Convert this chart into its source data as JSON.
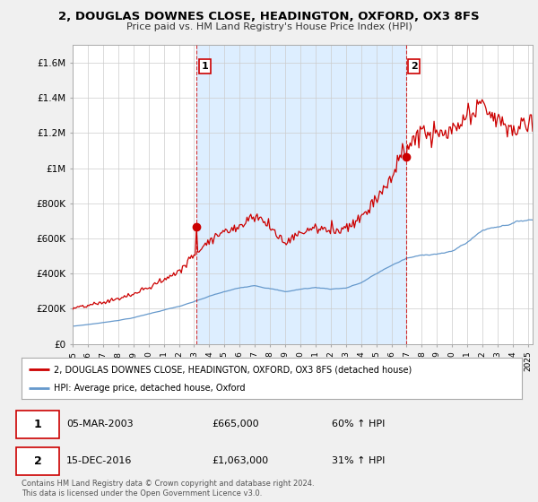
{
  "title": "2, DOUGLAS DOWNES CLOSE, HEADINGTON, OXFORD, OX3 8FS",
  "subtitle": "Price paid vs. HM Land Registry's House Price Index (HPI)",
  "ylim": [
    0,
    1700000
  ],
  "yticks": [
    0,
    200000,
    400000,
    600000,
    800000,
    1000000,
    1200000,
    1400000,
    1600000
  ],
  "ytick_labels": [
    "£0",
    "£200K",
    "£400K",
    "£600K",
    "£800K",
    "£1M",
    "£1.2M",
    "£1.4M",
    "£1.6M"
  ],
  "xlim_start": 1995.0,
  "xlim_end": 2025.3,
  "transaction1_year": 2003.17,
  "transaction1_price": 665000,
  "transaction2_year": 2016.96,
  "transaction2_price": 1063000,
  "line_color_property": "#cc0000",
  "line_color_hpi": "#6699cc",
  "background_color": "#f0f0f0",
  "plot_bg_color": "#ffffff",
  "shade_color": "#ddeeff",
  "grid_color": "#cccccc",
  "legend_label_property": "2, DOUGLAS DOWNES CLOSE, HEADINGTON, OXFORD, OX3 8FS (detached house)",
  "legend_label_hpi": "HPI: Average price, detached house, Oxford",
  "transaction1_date": "05-MAR-2003",
  "transaction1_hpi_pct": "60% ↑ HPI",
  "transaction2_date": "15-DEC-2016",
  "transaction2_hpi_pct": "31% ↑ HPI",
  "footnote": "Contains HM Land Registry data © Crown copyright and database right 2024.\nThis data is licensed under the Open Government Licence v3.0.",
  "xtick_years": [
    1995,
    1996,
    1997,
    1998,
    1999,
    2000,
    2001,
    2002,
    2003,
    2004,
    2005,
    2006,
    2007,
    2008,
    2009,
    2010,
    2011,
    2012,
    2013,
    2014,
    2015,
    2016,
    2017,
    2018,
    2019,
    2020,
    2021,
    2022,
    2023,
    2024,
    2025
  ],
  "hpi_yearly": [
    100000,
    110000,
    121000,
    135000,
    150000,
    172000,
    195000,
    215000,
    240000,
    270000,
    295000,
    315000,
    335000,
    320000,
    300000,
    315000,
    325000,
    318000,
    325000,
    355000,
    405000,
    455000,
    495000,
    510000,
    525000,
    535000,
    590000,
    660000,
    685000,
    710000,
    730000
  ],
  "prop_yearly": [
    200000,
    218000,
    237000,
    258000,
    282000,
    320000,
    365000,
    415000,
    510000,
    600000,
    640000,
    680000,
    750000,
    680000,
    590000,
    650000,
    680000,
    665000,
    680000,
    740000,
    850000,
    970000,
    1150000,
    1230000,
    1200000,
    1220000,
    1300000,
    1380000,
    1280000,
    1230000,
    1280000
  ]
}
